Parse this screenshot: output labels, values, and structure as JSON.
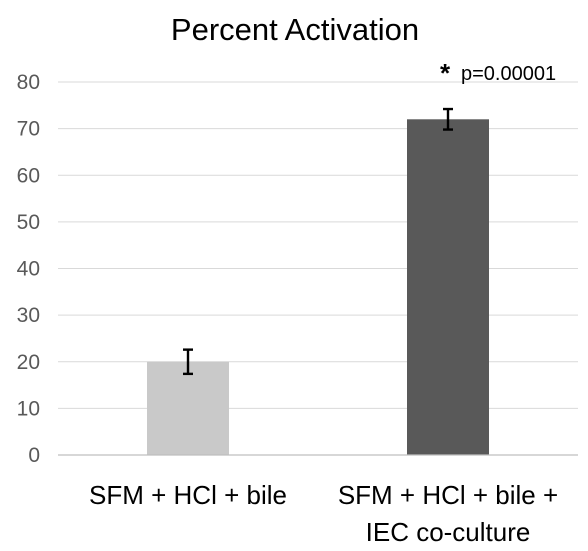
{
  "chart_data": {
    "type": "bar",
    "title": "Percent Activation",
    "categories": [
      [
        "SFM + HCl + bile"
      ],
      [
        "SFM + HCl + bile +",
        "IEC co-culture"
      ]
    ],
    "values": [
      20,
      72
    ],
    "errors": [
      2.6,
      2.2
    ],
    "colors": [
      "#c9c9c9",
      "#595959"
    ],
    "ylim": [
      0,
      80
    ],
    "yticks": [
      0,
      10,
      20,
      30,
      40,
      50,
      60,
      70,
      80
    ],
    "grid": true,
    "annotation": {
      "target_index": 1,
      "star": "*",
      "text": "p=0.00001"
    }
  }
}
